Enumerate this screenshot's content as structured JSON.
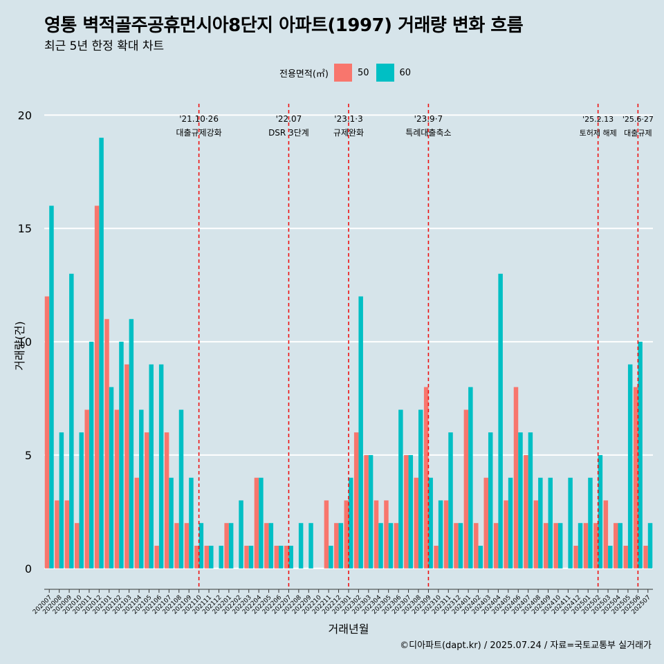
{
  "title": "영통 벽적골주공휴먼시아8단지 아파트(1997) 거래량 변화 흐름",
  "subtitle": "최근 5년 한정 확대 차트",
  "caption": "©디아파트(dapt.kr) / 2025.07.24 / 자료=국토교통부 실거래가",
  "legend": {
    "title": "전용면적(㎡)",
    "items": [
      {
        "label": "50",
        "color": "#f8766d"
      },
      {
        "label": "60",
        "color": "#00bfc4"
      }
    ]
  },
  "chart_data": {
    "type": "bar",
    "xlabel": "거래년월",
    "ylabel": "거래량(건)",
    "ylim": [
      -0.8,
      20.5
    ],
    "yticks": [
      0,
      5,
      10,
      15,
      20
    ],
    "categories": [
      "202007",
      "202008",
      "202009",
      "202010",
      "202011",
      "202012",
      "202101",
      "202102",
      "202103",
      "202104",
      "202105",
      "202106",
      "202107",
      "202108",
      "202109",
      "202110",
      "202111",
      "202112",
      "202201",
      "202202",
      "202203",
      "202204",
      "202205",
      "202206",
      "202207",
      "202208",
      "202209",
      "202210",
      "202211",
      "202212",
      "202301",
      "202302",
      "202303",
      "202304",
      "202305",
      "202306",
      "202307",
      "202308",
      "202309",
      "202310",
      "202311",
      "202312",
      "202401",
      "202402",
      "202403",
      "202404",
      "202405",
      "202406",
      "202407",
      "202408",
      "202409",
      "202410",
      "202411",
      "202412",
      "202501",
      "202502",
      "202503",
      "202504",
      "202505",
      "202506",
      "202507"
    ],
    "series": [
      {
        "name": "50",
        "color": "#f8766d",
        "values": [
          12,
          3,
          3,
          2,
          7,
          16,
          11,
          7,
          9,
          4,
          6,
          1,
          6,
          2,
          2,
          1,
          1,
          0,
          2,
          0,
          1,
          4,
          2,
          1,
          1,
          0,
          0,
          0,
          3,
          2,
          3,
          6,
          5,
          3,
          3,
          2,
          5,
          4,
          8,
          1,
          3,
          2,
          7,
          2,
          4,
          2,
          3,
          8,
          5,
          3,
          2,
          2,
          0,
          1,
          2,
          2,
          3,
          2,
          1,
          8,
          1
        ]
      },
      {
        "name": "60",
        "color": "#00bfc4",
        "values": [
          16,
          6,
          13,
          6,
          10,
          19,
          8,
          10,
          11,
          7,
          9,
          9,
          4,
          7,
          4,
          2,
          1,
          1,
          2,
          3,
          1,
          4,
          2,
          1,
          1,
          2,
          2,
          0,
          1,
          2,
          4,
          12,
          5,
          2,
          2,
          7,
          5,
          7,
          4,
          3,
          6,
          2,
          8,
          1,
          6,
          13,
          4,
          6,
          6,
          4,
          4,
          2,
          4,
          2,
          4,
          5,
          1,
          2,
          9,
          10,
          2
        ]
      }
    ],
    "annotations": [
      {
        "category": "202110",
        "date": "'21.10·26",
        "label": "대출규제강화"
      },
      {
        "category": "202207",
        "date": "'22.07",
        "label": "DSR 3단계"
      },
      {
        "category": "202301",
        "date": "'23.1·3",
        "label": "규제완화"
      },
      {
        "category": "202309",
        "date": "'23.9·7",
        "label": "특례대출축소"
      },
      {
        "category": "202502",
        "date": "'25.2.13",
        "label": "토허제 해제"
      },
      {
        "category": "202506",
        "date": "'25.6·27",
        "label": "대출규제"
      }
    ]
  }
}
